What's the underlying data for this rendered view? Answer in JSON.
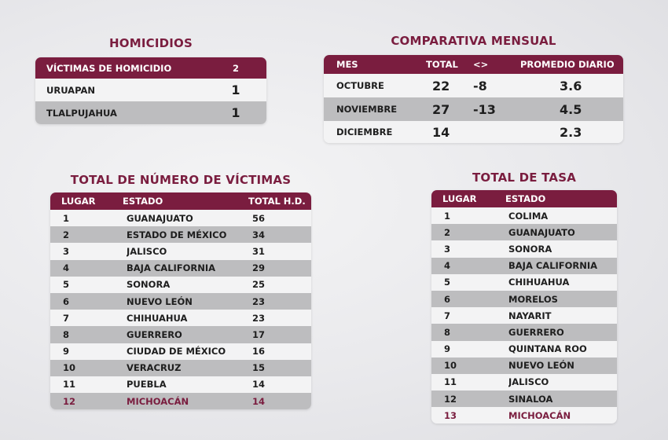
{
  "homicidios": {
    "title": "HOMICIDIOS",
    "header_label": "VÍCTIMAS DE HOMICIDIO",
    "header_value": "2",
    "rows": [
      {
        "name": "URUAPAN",
        "value": "1"
      },
      {
        "name": "TLALPUJAHUA",
        "value": "1"
      }
    ]
  },
  "comparativa": {
    "title": "COMPARATIVA MENSUAL",
    "headers": [
      "MES",
      "TOTAL",
      "<>",
      "PROMEDIO DIARIO"
    ],
    "rows": [
      {
        "mes": "OCTUBRE",
        "total": "22",
        "diff": "-8",
        "promedio": "3.6"
      },
      {
        "mes": "NOVIEMBRE",
        "total": "27",
        "diff": "-13",
        "promedio": "4.5"
      },
      {
        "mes": "DICIEMBRE",
        "total": "14",
        "diff": "",
        "promedio": "2.3"
      }
    ]
  },
  "victimas": {
    "title": "TOTAL DE NÚMERO DE VÍCTIMAS",
    "headers": [
      "LUGAR",
      "ESTADO",
      "TOTAL H.D."
    ],
    "rows": [
      {
        "lugar": "1",
        "estado": "GUANAJUATO",
        "total": "56"
      },
      {
        "lugar": "2",
        "estado": "ESTADO DE MÉXICO",
        "total": "34"
      },
      {
        "lugar": "3",
        "estado": "JALISCO",
        "total": "31"
      },
      {
        "lugar": "4",
        "estado": "BAJA CALIFORNIA",
        "total": "29"
      },
      {
        "lugar": "5",
        "estado": "SONORA",
        "total": "25"
      },
      {
        "lugar": "6",
        "estado": "NUEVO LEÓN",
        "total": "23"
      },
      {
        "lugar": "7",
        "estado": "CHIHUAHUA",
        "total": "23"
      },
      {
        "lugar": "8",
        "estado": "GUERRERO",
        "total": "17"
      },
      {
        "lugar": "9",
        "estado": "CIUDAD DE MÉXICO",
        "total": "16"
      },
      {
        "lugar": "10",
        "estado": "VERACRUZ",
        "total": "15"
      },
      {
        "lugar": "11",
        "estado": "PUEBLA",
        "total": "14"
      },
      {
        "lugar": "12",
        "estado": "MICHOACÁN",
        "total": "14"
      }
    ]
  },
  "tasa": {
    "title": "TOTAL DE TASA",
    "headers": [
      "LUGAR",
      "ESTADO"
    ],
    "rows": [
      {
        "lugar": "1",
        "estado": "COLIMA"
      },
      {
        "lugar": "2",
        "estado": "GUANAJUATO"
      },
      {
        "lugar": "3",
        "estado": "SONORA"
      },
      {
        "lugar": "4",
        "estado": "BAJA CALIFORNIA"
      },
      {
        "lugar": "5",
        "estado": "CHIHUAHUA"
      },
      {
        "lugar": "6",
        "estado": "MORELOS"
      },
      {
        "lugar": "7",
        "estado": "NAYARIT"
      },
      {
        "lugar": "8",
        "estado": "GUERRERO"
      },
      {
        "lugar": "9",
        "estado": "QUINTANA ROO"
      },
      {
        "lugar": "10",
        "estado": "NUEVO LEÓN"
      },
      {
        "lugar": "11",
        "estado": "JALISCO"
      },
      {
        "lugar": "12",
        "estado": "SINALOA"
      },
      {
        "lugar": "13",
        "estado": "MICHOACÁN"
      }
    ]
  },
  "colors": {
    "accent": "#7a1d3f",
    "row_light": "#f3f3f4",
    "row_dark": "#bdbdbf"
  }
}
